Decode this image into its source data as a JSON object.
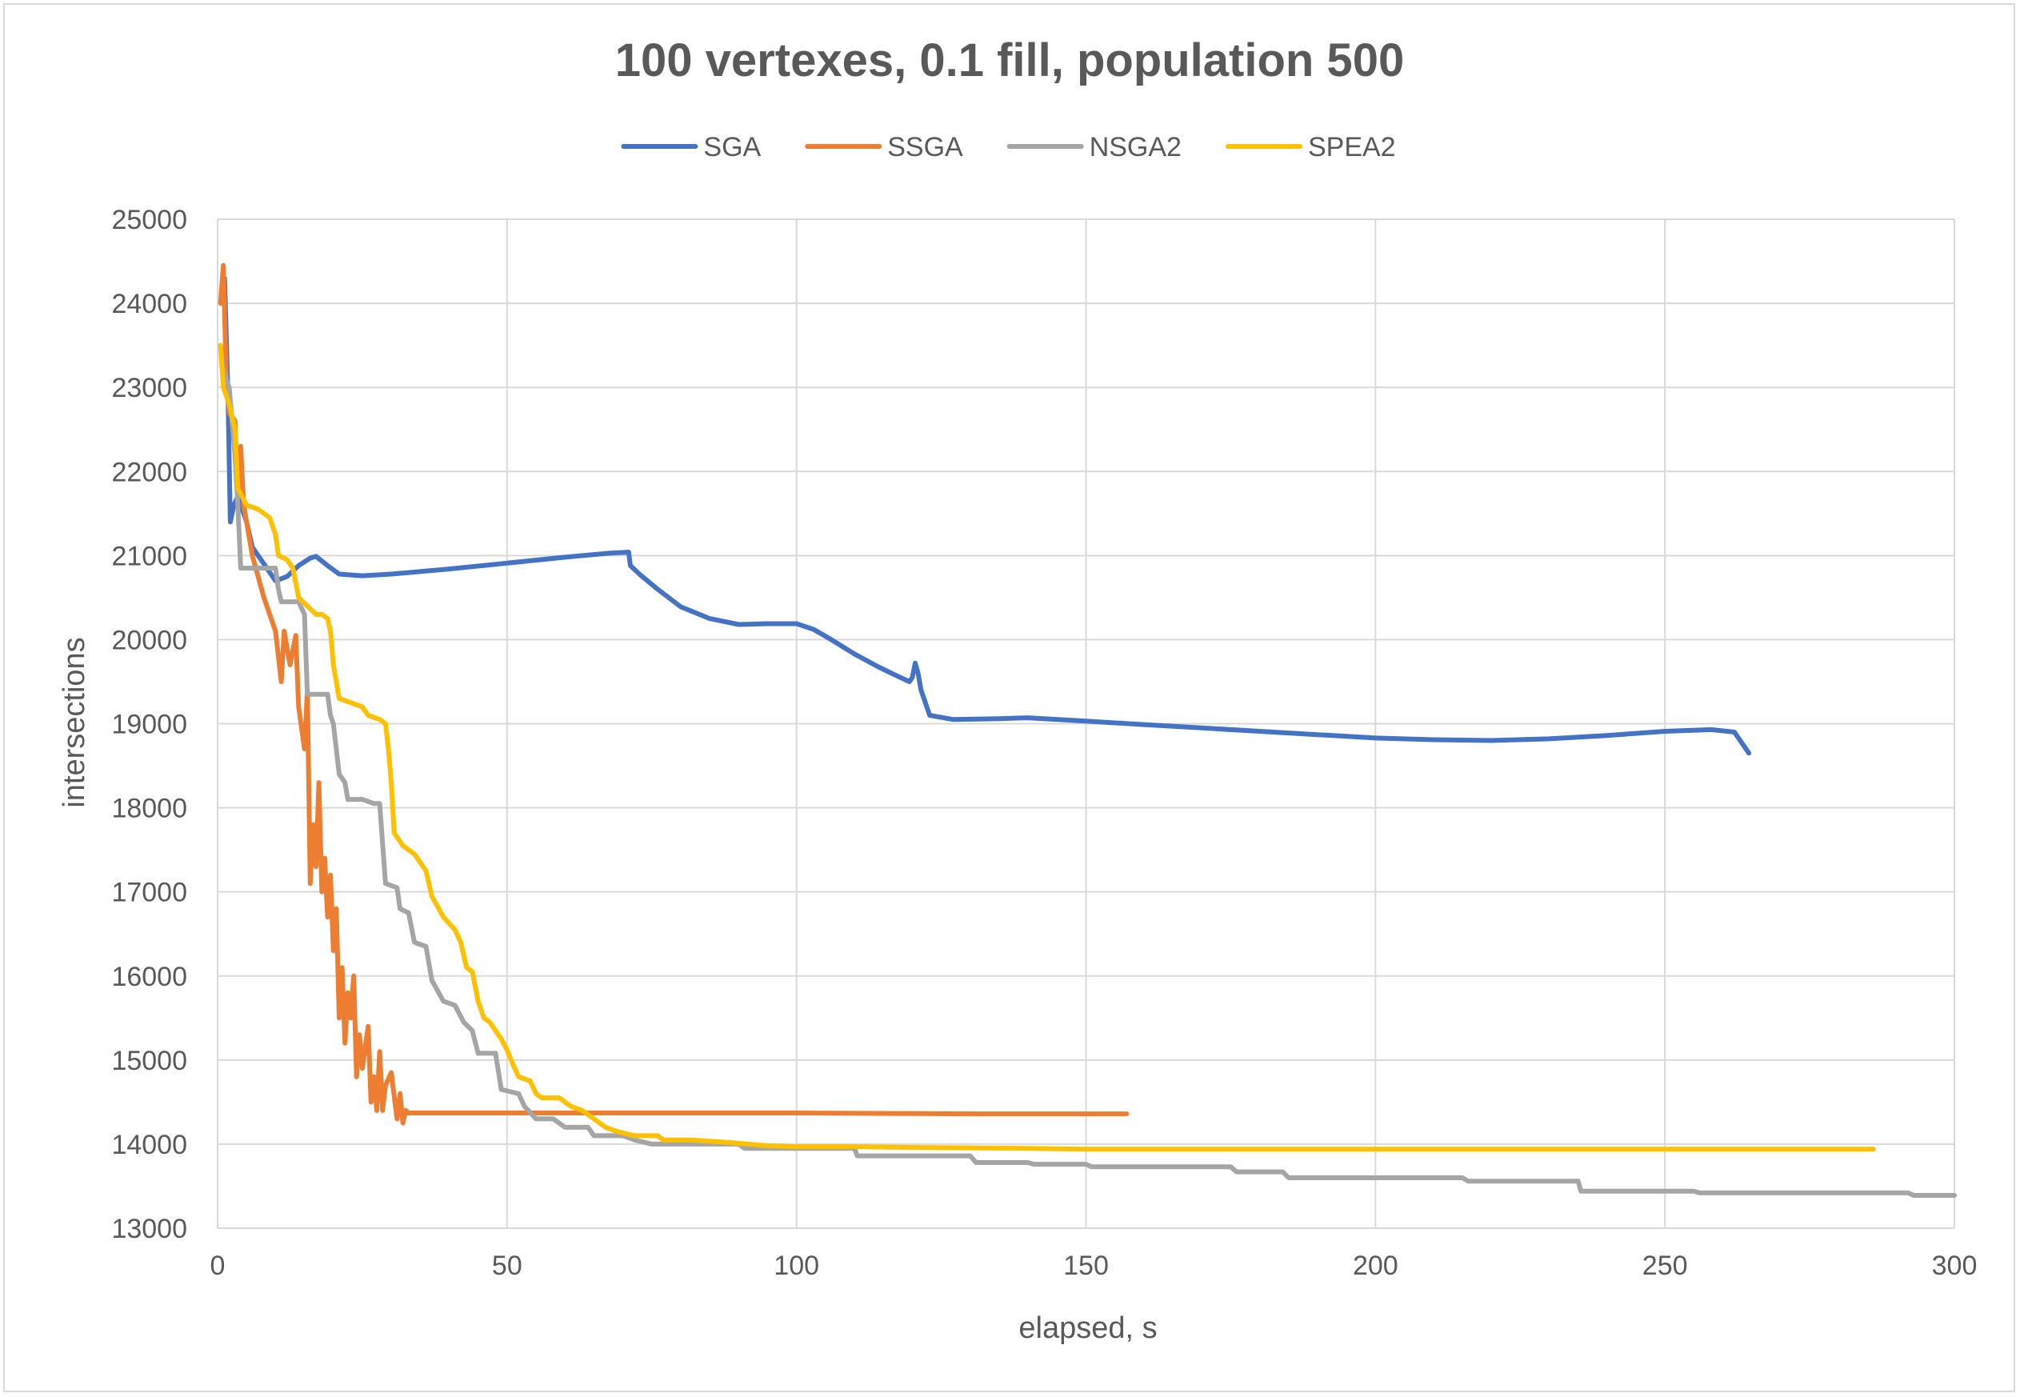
{
  "chart_data": {
    "type": "line",
    "title": "100 vertexes, 0.1 fill, population 500",
    "xlabel": "elapsed, s",
    "ylabel": "intersections",
    "xlim": [
      0,
      300
    ],
    "ylim": [
      13000,
      25000
    ],
    "xticks": [
      "0",
      "50",
      "100",
      "150",
      "200",
      "250",
      "300"
    ],
    "yticks": [
      "13000",
      "14000",
      "15000",
      "16000",
      "17000",
      "18000",
      "19000",
      "20000",
      "21000",
      "22000",
      "23000",
      "24000",
      "25000"
    ],
    "grid": true,
    "legend_position": "top-center",
    "series": [
      {
        "name": "SGA",
        "color": "#4472C4",
        "points": [
          [
            1.2,
            24300
          ],
          [
            1.8,
            22900
          ],
          [
            2.2,
            21400
          ],
          [
            2.8,
            21600
          ],
          [
            3.5,
            21700
          ],
          [
            5,
            21400
          ],
          [
            6,
            21100
          ],
          [
            8,
            20900
          ],
          [
            10,
            20700
          ],
          [
            12,
            20750
          ],
          [
            14,
            20880
          ],
          [
            16,
            20970
          ],
          [
            17,
            20990
          ],
          [
            19,
            20880
          ],
          [
            21,
            20780
          ],
          [
            25,
            20760
          ],
          [
            30,
            20780
          ],
          [
            40,
            20840
          ],
          [
            50,
            20910
          ],
          [
            60,
            20980
          ],
          [
            68,
            21030
          ],
          [
            71,
            21040
          ],
          [
            71.3,
            20880
          ],
          [
            73,
            20770
          ],
          [
            76,
            20600
          ],
          [
            80,
            20390
          ],
          [
            85,
            20250
          ],
          [
            90,
            20180
          ],
          [
            95,
            20190
          ],
          [
            100,
            20190
          ],
          [
            103,
            20120
          ],
          [
            106,
            20000
          ],
          [
            110,
            19830
          ],
          [
            114,
            19680
          ],
          [
            117,
            19580
          ],
          [
            119.5,
            19500
          ],
          [
            120,
            19550
          ],
          [
            120.5,
            19720
          ],
          [
            121,
            19600
          ],
          [
            121.5,
            19400
          ],
          [
            123,
            19100
          ],
          [
            127,
            19050
          ],
          [
            135,
            19060
          ],
          [
            140,
            19070
          ],
          [
            150,
            19030
          ],
          [
            160,
            18990
          ],
          [
            170,
            18950
          ],
          [
            180,
            18910
          ],
          [
            190,
            18870
          ],
          [
            200,
            18830
          ],
          [
            210,
            18810
          ],
          [
            220,
            18800
          ],
          [
            230,
            18820
          ],
          [
            240,
            18860
          ],
          [
            250,
            18910
          ],
          [
            258,
            18930
          ],
          [
            262,
            18900
          ],
          [
            264.5,
            18650
          ]
        ]
      },
      {
        "name": "SSGA",
        "color": "#ED7D31",
        "points": [
          [
            0.5,
            24000
          ],
          [
            1,
            24450
          ],
          [
            1.5,
            23100
          ],
          [
            2,
            22700
          ],
          [
            3,
            22600
          ],
          [
            3.5,
            21700
          ],
          [
            4,
            22300
          ],
          [
            4.5,
            21600
          ],
          [
            6,
            21000
          ],
          [
            8,
            20500
          ],
          [
            10,
            20100
          ],
          [
            11,
            19500
          ],
          [
            11.5,
            20100
          ],
          [
            12.5,
            19700
          ],
          [
            13.5,
            20050
          ],
          [
            14,
            19200
          ],
          [
            15,
            18700
          ],
          [
            15.5,
            19400
          ],
          [
            16,
            17100
          ],
          [
            16.5,
            17800
          ],
          [
            17,
            17300
          ],
          [
            17.5,
            18300
          ],
          [
            18,
            17000
          ],
          [
            18.5,
            17400
          ],
          [
            19,
            16700
          ],
          [
            19.5,
            17200
          ],
          [
            20,
            16300
          ],
          [
            20.5,
            16800
          ],
          [
            21,
            15500
          ],
          [
            21.5,
            16100
          ],
          [
            22,
            15200
          ],
          [
            22.5,
            15800
          ],
          [
            23,
            15500
          ],
          [
            23.5,
            16000
          ],
          [
            24,
            14800
          ],
          [
            24.5,
            15300
          ],
          [
            25,
            14900
          ],
          [
            26,
            15400
          ],
          [
            26.5,
            14500
          ],
          [
            27,
            14800
          ],
          [
            27.5,
            14400
          ],
          [
            28,
            15100
          ],
          [
            28.5,
            14400
          ],
          [
            29,
            14700
          ],
          [
            30,
            14850
          ],
          [
            31,
            14300
          ],
          [
            31.5,
            14600
          ],
          [
            32,
            14250
          ],
          [
            32.5,
            14400
          ],
          [
            33,
            14370
          ],
          [
            60,
            14370
          ],
          [
            100,
            14370
          ],
          [
            130,
            14360
          ],
          [
            157,
            14360
          ]
        ]
      },
      {
        "name": "NSGA2",
        "color": "#A5A5A5",
        "points": [
          [
            0.5,
            23500
          ],
          [
            1,
            23200
          ],
          [
            2,
            23000
          ],
          [
            3,
            22200
          ],
          [
            3.5,
            21600
          ],
          [
            4,
            20850
          ],
          [
            5,
            20850
          ],
          [
            10,
            20850
          ],
          [
            10.5,
            20600
          ],
          [
            11,
            20450
          ],
          [
            14,
            20450
          ],
          [
            15,
            20300
          ],
          [
            15.5,
            19350
          ],
          [
            19,
            19350
          ],
          [
            19.5,
            19100
          ],
          [
            20,
            19000
          ],
          [
            21,
            18400
          ],
          [
            22,
            18300
          ],
          [
            22.5,
            18100
          ],
          [
            25,
            18100
          ],
          [
            27,
            18050
          ],
          [
            28,
            18050
          ],
          [
            29,
            17100
          ],
          [
            31,
            17050
          ],
          [
            31.5,
            16800
          ],
          [
            33,
            16750
          ],
          [
            34,
            16400
          ],
          [
            36,
            16350
          ],
          [
            37,
            15950
          ],
          [
            39,
            15700
          ],
          [
            41,
            15650
          ],
          [
            42.5,
            15450
          ],
          [
            44,
            15350
          ],
          [
            45,
            15080
          ],
          [
            48,
            15080
          ],
          [
            49,
            14650
          ],
          [
            52,
            14600
          ],
          [
            53,
            14450
          ],
          [
            55,
            14300
          ],
          [
            58,
            14300
          ],
          [
            60,
            14200
          ],
          [
            64,
            14200
          ],
          [
            65,
            14100
          ],
          [
            70,
            14100
          ],
          [
            72,
            14050
          ],
          [
            75,
            14000
          ],
          [
            90,
            14000
          ],
          [
            91,
            13950
          ],
          [
            98,
            13950
          ],
          [
            100,
            13950
          ],
          [
            110,
            13950
          ],
          [
            110.5,
            13860
          ],
          [
            125,
            13860
          ],
          [
            130,
            13860
          ],
          [
            131,
            13780
          ],
          [
            140,
            13780
          ],
          [
            141,
            13760
          ],
          [
            150,
            13760
          ],
          [
            151,
            13730
          ],
          [
            175,
            13730
          ],
          [
            176,
            13670
          ],
          [
            184,
            13670
          ],
          [
            185,
            13600
          ],
          [
            215,
            13600
          ],
          [
            216,
            13560
          ],
          [
            235,
            13560
          ],
          [
            235.5,
            13440
          ],
          [
            255,
            13440
          ],
          [
            256,
            13420
          ],
          [
            292,
            13420
          ],
          [
            293,
            13390
          ],
          [
            300,
            13390
          ]
        ]
      },
      {
        "name": "SPEA2",
        "color": "#FFC000",
        "points": [
          [
            0.5,
            23500
          ],
          [
            1,
            23000
          ],
          [
            2,
            22800
          ],
          [
            3,
            22500
          ],
          [
            3.5,
            21800
          ],
          [
            5,
            21600
          ],
          [
            7,
            21550
          ],
          [
            9,
            21450
          ],
          [
            10,
            21250
          ],
          [
            10.5,
            21000
          ],
          [
            12,
            20950
          ],
          [
            13,
            20850
          ],
          [
            14,
            20500
          ],
          [
            17,
            20300
          ],
          [
            18,
            20300
          ],
          [
            19,
            20250
          ],
          [
            19.5,
            20100
          ],
          [
            20,
            19700
          ],
          [
            21,
            19300
          ],
          [
            23,
            19250
          ],
          [
            25,
            19200
          ],
          [
            26,
            19100
          ],
          [
            28,
            19050
          ],
          [
            29,
            19000
          ],
          [
            29.5,
            18700
          ],
          [
            30,
            18300
          ],
          [
            30.5,
            17700
          ],
          [
            32,
            17550
          ],
          [
            34,
            17450
          ],
          [
            36,
            17250
          ],
          [
            37,
            16950
          ],
          [
            39,
            16700
          ],
          [
            41,
            16550
          ],
          [
            42,
            16400
          ],
          [
            43,
            16100
          ],
          [
            44,
            16050
          ],
          [
            45,
            15700
          ],
          [
            46,
            15500
          ],
          [
            47,
            15450
          ],
          [
            49,
            15250
          ],
          [
            50,
            15120
          ],
          [
            51,
            14950
          ],
          [
            52,
            14800
          ],
          [
            54,
            14750
          ],
          [
            55,
            14600
          ],
          [
            56,
            14550
          ],
          [
            59,
            14550
          ],
          [
            61,
            14450
          ],
          [
            63,
            14400
          ],
          [
            65,
            14300
          ],
          [
            67,
            14200
          ],
          [
            69,
            14150
          ],
          [
            72,
            14100
          ],
          [
            76,
            14100
          ],
          [
            77,
            14050
          ],
          [
            82,
            14050
          ],
          [
            88,
            14020
          ],
          [
            95,
            13980
          ],
          [
            100,
            13970
          ],
          [
            110,
            13970
          ],
          [
            120,
            13960
          ],
          [
            140,
            13950
          ],
          [
            150,
            13940
          ],
          [
            200,
            13940
          ],
          [
            250,
            13940
          ],
          [
            286,
            13940
          ]
        ]
      }
    ]
  }
}
